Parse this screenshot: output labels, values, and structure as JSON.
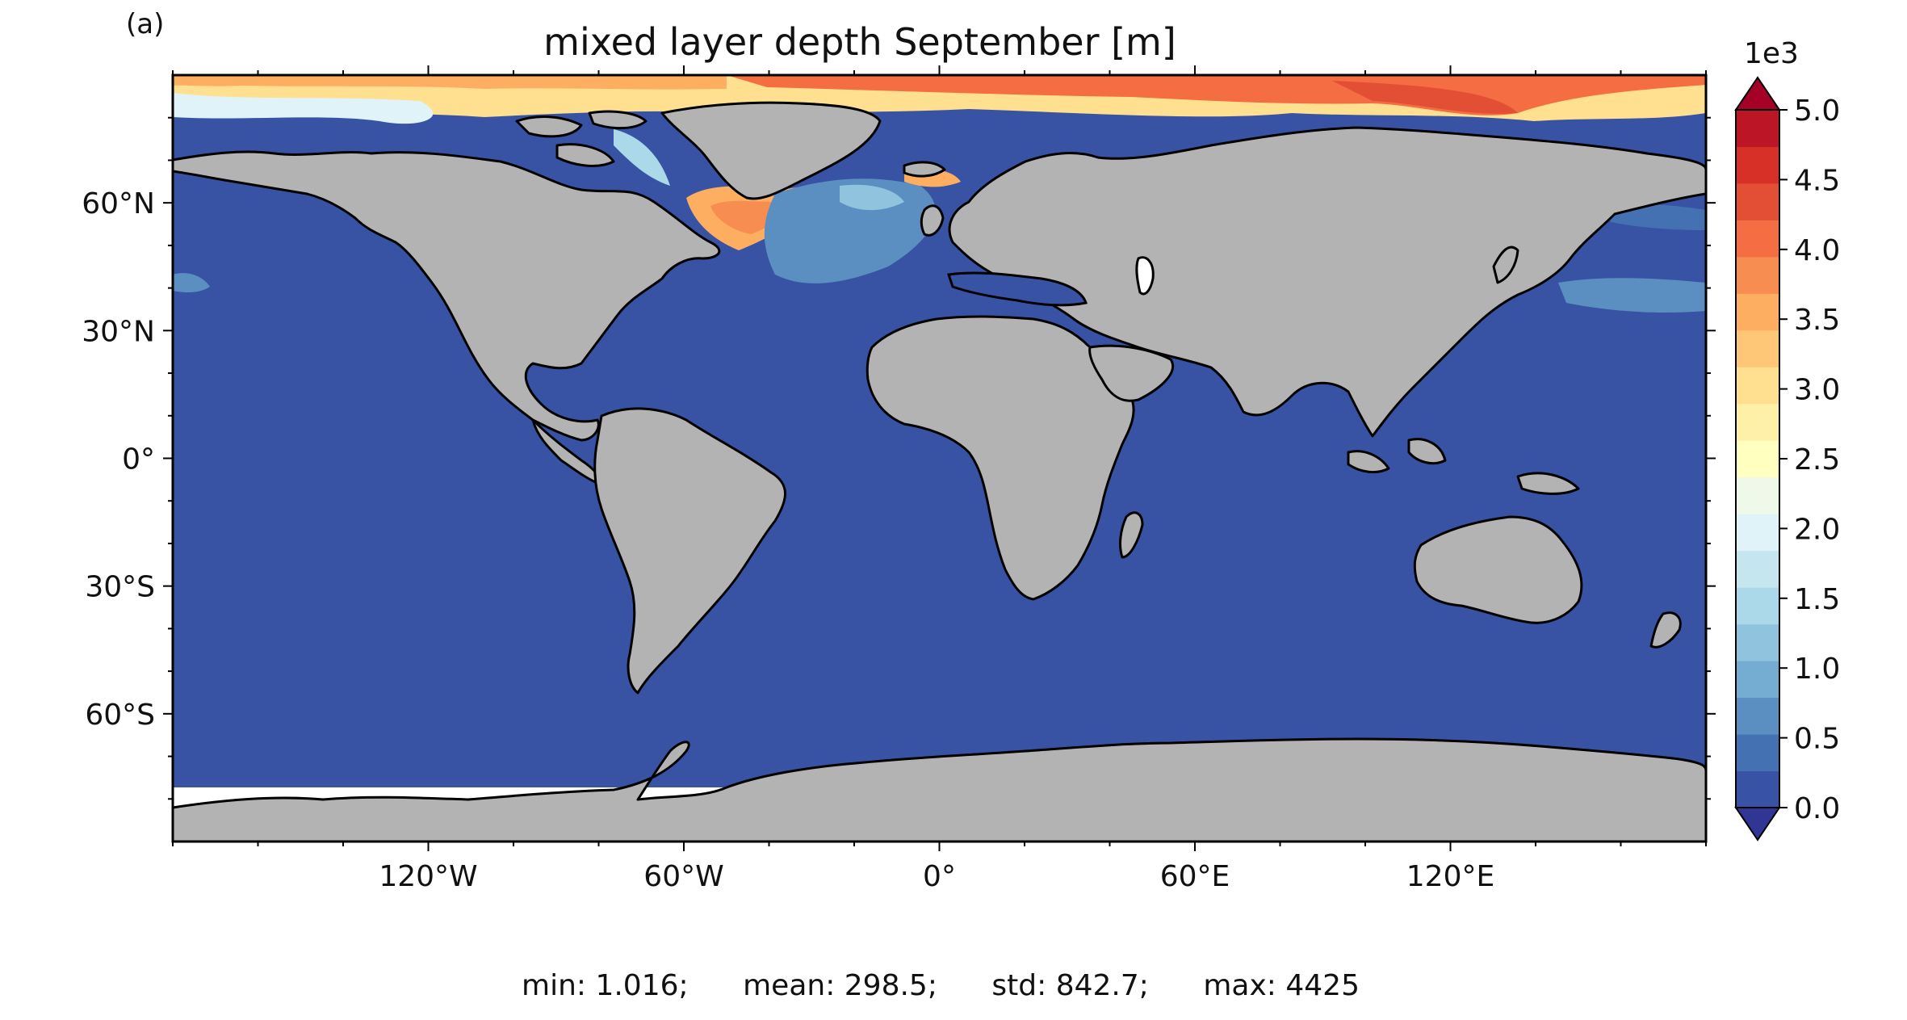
{
  "panel_label": "(a)",
  "title": "mixed layer depth September [m]",
  "stats": {
    "min": "min: 1.016;",
    "mean": "mean: 298.5;",
    "std": "std: 842.7;",
    "max": "max: 4425"
  },
  "map": {
    "projection": "PlateCarree",
    "lon_range": [
      -180,
      180
    ],
    "lat_range": [
      -90,
      90
    ],
    "land_color": "#b3b3b3",
    "coast_color": "#000000",
    "background_ocean_color": "#3953a4"
  },
  "lat_ticks": [
    "60°N",
    "30°N",
    "0°",
    "30°S",
    "60°S"
  ],
  "lat_tick_values": [
    60,
    30,
    0,
    -30,
    -60
  ],
  "lon_ticks": [
    "120°W",
    "60°W",
    "0°",
    "60°E",
    "120°E"
  ],
  "lon_tick_values": [
    -120,
    -60,
    0,
    60,
    120
  ],
  "colorbar": {
    "multiplier_label": "1e3",
    "tick_labels": [
      "0.0",
      "0.5",
      "1.0",
      "1.5",
      "2.0",
      "2.5",
      "3.0",
      "3.5",
      "4.0",
      "4.5",
      "5.0"
    ],
    "tick_values": [
      0,
      0.5,
      1.0,
      1.5,
      2.0,
      2.5,
      3.0,
      3.5,
      4.0,
      4.5,
      5.0
    ],
    "extend": "both",
    "colors": [
      "#313695",
      "#3953a4",
      "#4471b2",
      "#5b8fc2",
      "#74add1",
      "#90c3dd",
      "#abd9e9",
      "#c5e6ef",
      "#e0f3f8",
      "#eef9ea",
      "#ffffbf",
      "#fff0a8",
      "#fee090",
      "#fdc777",
      "#fdae61",
      "#f88d51",
      "#f46d43",
      "#e34f35",
      "#d73027",
      "#bb1526",
      "#a50026"
    ]
  }
}
